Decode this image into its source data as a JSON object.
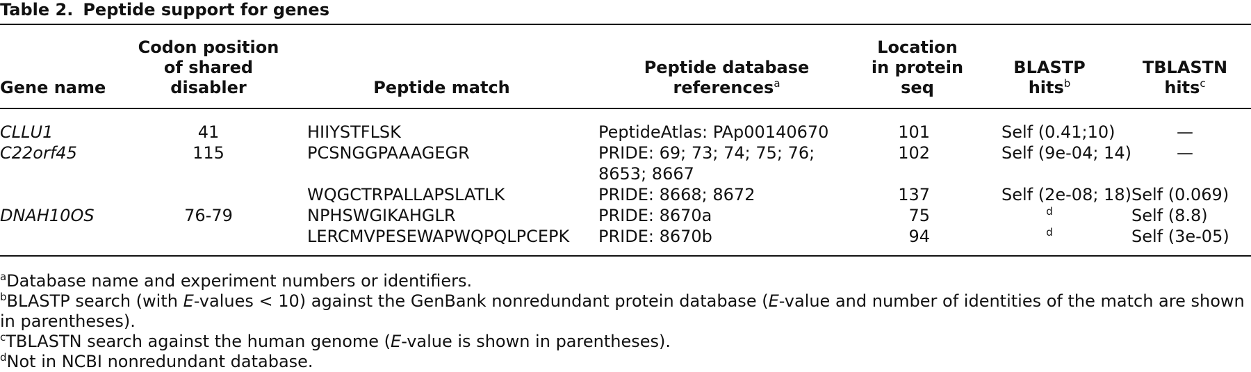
{
  "title": {
    "label": "Table 2.",
    "text": "Peptide support for genes"
  },
  "table": {
    "columns": [
      {
        "lines": [
          "Gene name"
        ]
      },
      {
        "lines": [
          "Codon position",
          "of shared disabler"
        ]
      },
      {
        "lines": [
          "Peptide match"
        ]
      },
      {
        "lines": [
          "Peptide database",
          "references"
        ],
        "note": "a"
      },
      {
        "lines": [
          "Location",
          "in protein seq"
        ]
      },
      {
        "lines": [
          "BLASTP",
          "hits"
        ],
        "note": "b"
      },
      {
        "lines": [
          "TBLASTN",
          "hits"
        ],
        "note": "c"
      }
    ],
    "rows": [
      [
        "CLLU1",
        41,
        "HIIYSTFLSK",
        [
          "PeptideAtlas: PAp00140670"
        ],
        101,
        "Self (0.41;10)",
        "—"
      ],
      [
        "C22orf45",
        115,
        "PCSNGGPAAAGEGR",
        [
          "PRIDE: 69; 73; 74; 75; 76;",
          "8653; 8667"
        ],
        102,
        "Self (9e-04; 14)",
        "—"
      ],
      [
        null,
        null,
        "WQGCTRPALLAPSLATLK",
        [
          "PRIDE: 8668; 8672"
        ],
        137,
        "Self (2e-08; 18)",
        "Self (0.069)"
      ],
      [
        "DNAH10OS",
        "76-79",
        "NPHSWGIKAHGLR",
        [
          "PRIDE: 8670a"
        ],
        75,
        {
          "note": "d"
        },
        "Self (8.8)"
      ],
      [
        null,
        null,
        "LERCMVPESEWAPWQPQLPCEPK",
        [
          "PRIDE: 8670b"
        ],
        94,
        {
          "note": "d"
        },
        "Self (3e-05)"
      ]
    ]
  },
  "footnotes": [
    {
      "mark": "a",
      "parts": [
        "Database name and experiment numbers or identifiers."
      ]
    },
    {
      "mark": "b",
      "parts": [
        "BLASTP search (with ",
        "E",
        "-values < 10) against the GenBank nonredundant protein database (",
        "E",
        "-value and number of identities of the match are shown in parentheses)."
      ]
    },
    {
      "mark": "c",
      "parts": [
        "TBLASTN search against the human genome (",
        "E",
        "-value is shown in parentheses)."
      ]
    },
    {
      "mark": "d",
      "parts": [
        "Not in NCBI nonredundant database."
      ]
    }
  ]
}
